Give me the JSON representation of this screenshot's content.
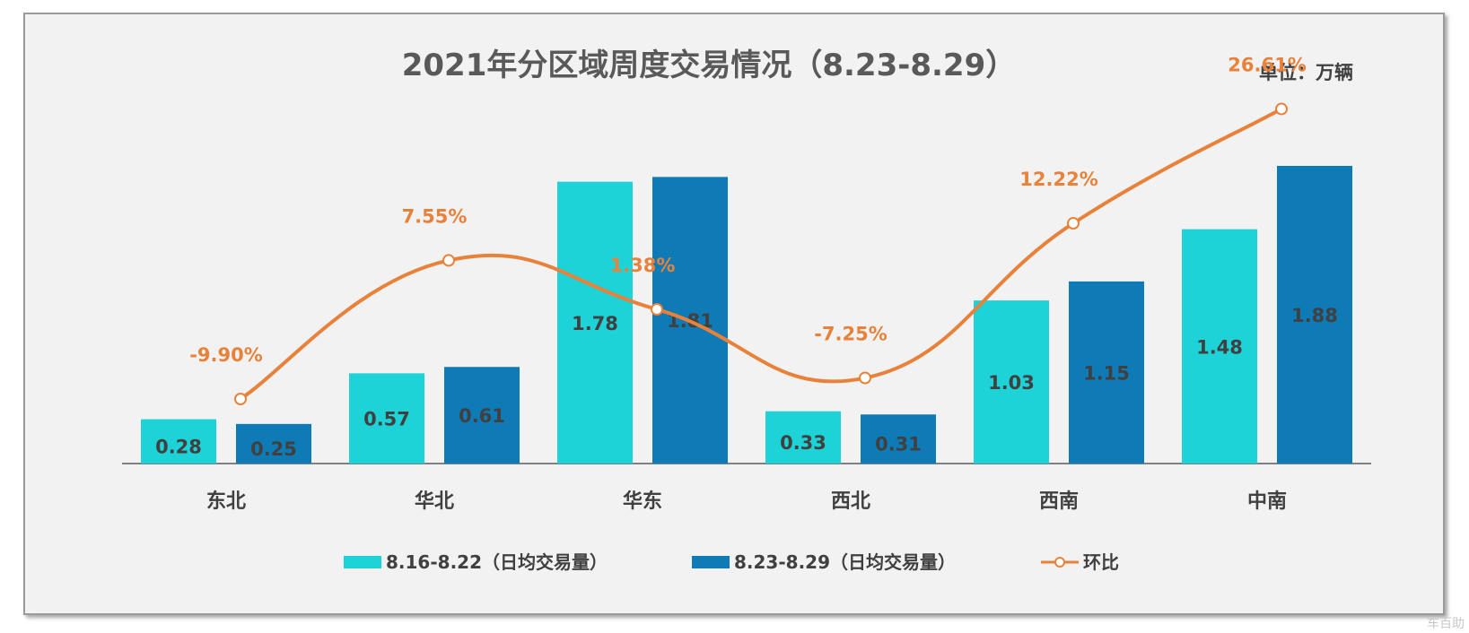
{
  "title": "2021年分区域周度交易情况（8.23-8.29）",
  "unit": "单位：万辆",
  "watermark": "车百助",
  "colors": {
    "series1": "#1dd3d8",
    "series2": "#0f7bb6",
    "line": "#e8823a"
  },
  "chart_data": {
    "type": "bar",
    "categories": [
      "东北",
      "华北",
      "华东",
      "西北",
      "西南",
      "中南"
    ],
    "series": [
      {
        "name": "8.16-8.22（日均交易量）",
        "values": [
          0.28,
          0.57,
          1.78,
          0.33,
          1.03,
          1.48
        ]
      },
      {
        "name": "8.23-8.29（日均交易量）",
        "values": [
          0.25,
          0.61,
          1.81,
          0.31,
          1.15,
          1.88
        ]
      }
    ],
    "line_series": {
      "name": "环比",
      "values": [
        -9.9,
        7.55,
        1.38,
        -7.25,
        12.22,
        26.61
      ],
      "labels": [
        "-9.90%",
        "7.55%",
        "1.38%",
        "-7.25%",
        "12.22%",
        "26.61%"
      ]
    },
    "grid": false,
    "legend": "bottom"
  }
}
